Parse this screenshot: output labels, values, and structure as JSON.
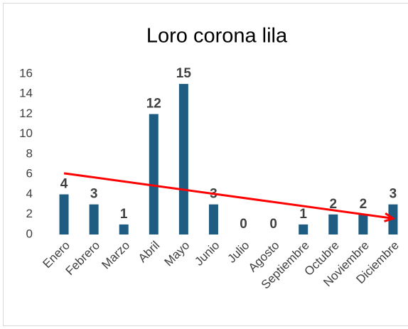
{
  "chart_data": {
    "type": "bar",
    "title": "Loro corona lila",
    "categories": [
      "Enero",
      "Febrero",
      "Marzo",
      "Abril",
      "Mayo",
      "Junio",
      "Julio",
      "Agosto",
      "Septiembre",
      "Octubre",
      "Noviembre",
      "Diciembre"
    ],
    "values": [
      4,
      3,
      1,
      12,
      15,
      3,
      0,
      0,
      1,
      2,
      2,
      3
    ],
    "color": "#1f5c82",
    "ylim": [
      0,
      16
    ],
    "yticks": [
      0,
      2,
      4,
      6,
      8,
      10,
      12,
      14,
      16
    ],
    "grid": false,
    "trend": {
      "color": "#ff0000",
      "values": [
        6.1,
        1.6
      ]
    }
  }
}
